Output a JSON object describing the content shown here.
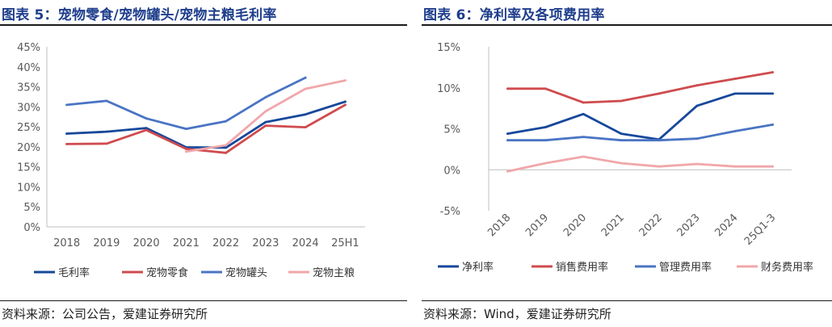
{
  "figures": [
    {
      "title": "图表 5：宠物零食/宠物罐头/宠物主粮毛利率",
      "source": "资料来源：公司公告，爱建证券研究所"
    },
    {
      "title": "图表 6：净利率及各项费用率",
      "source": "资料来源：Wind，爱建证券研究所"
    }
  ],
  "colors": {
    "title": "#1f3e8c",
    "dark_blue": "#17489a",
    "red": "#cf4b4e",
    "mid_blue": "#4a74c4",
    "pink": "#f0a7aa",
    "axis": "#bfbfbf",
    "tick_text": "#595959"
  },
  "chart_data": [
    {
      "type": "line",
      "title": "宠物零食/宠物罐头/宠物主粮毛利率",
      "categories": [
        "2018",
        "2019",
        "2020",
        "2021",
        "2022",
        "2023",
        "2024",
        "25H1"
      ],
      "y_ticks": [
        "0%",
        "5%",
        "10%",
        "15%",
        "20%",
        "25%",
        "30%",
        "35%",
        "40%",
        "45%"
      ],
      "ylim": [
        0,
        45
      ],
      "xlabel": "",
      "ylabel": "",
      "grid": false,
      "legend_position": "bottom",
      "series": [
        {
          "name": "毛利率",
          "color": "#17489a",
          "values": [
            23.3,
            23.8,
            24.7,
            19.9,
            19.8,
            26.2,
            28.1,
            31.3
          ]
        },
        {
          "name": "宠物零食",
          "color": "#cf4b4e",
          "values": [
            20.7,
            20.8,
            24.2,
            19.5,
            18.5,
            25.3,
            24.9,
            30.5
          ]
        },
        {
          "name": "宠物罐头",
          "color": "#4a74c4",
          "values": [
            30.5,
            31.5,
            27.1,
            24.5,
            26.4,
            32.4,
            37.3,
            null
          ]
        },
        {
          "name": "宠物主粮",
          "color": "#f0a7aa",
          "values": [
            null,
            null,
            null,
            18.8,
            20.4,
            28.9,
            34.5,
            36.6
          ]
        }
      ]
    },
    {
      "type": "line",
      "title": "净利率及各项费用率",
      "categories": [
        "2018",
        "2019",
        "2020",
        "2021",
        "2022",
        "2023",
        "2024",
        "25Q1-3"
      ],
      "y_ticks": [
        "-5%",
        "0%",
        "5%",
        "10%",
        "15%"
      ],
      "ylim": [
        -5,
        15
      ],
      "xlabel": "",
      "ylabel": "",
      "grid": false,
      "legend_position": "bottom",
      "series": [
        {
          "name": "净利率",
          "color": "#17489a",
          "values": [
            4.4,
            5.2,
            6.8,
            4.4,
            3.7,
            7.8,
            9.3,
            9.3
          ]
        },
        {
          "name": "销售费用率",
          "color": "#cf4b4e",
          "values": [
            9.9,
            9.9,
            8.2,
            8.4,
            9.3,
            10.3,
            11.1,
            11.9
          ]
        },
        {
          "name": "管理费用率",
          "color": "#4a74c4",
          "values": [
            3.6,
            3.6,
            4.0,
            3.6,
            3.6,
            3.8,
            4.7,
            5.5
          ]
        },
        {
          "name": "财务费用率",
          "color": "#f0a7aa",
          "values": [
            -0.2,
            0.8,
            1.6,
            0.8,
            0.4,
            0.7,
            0.4,
            0.4
          ]
        }
      ]
    }
  ]
}
